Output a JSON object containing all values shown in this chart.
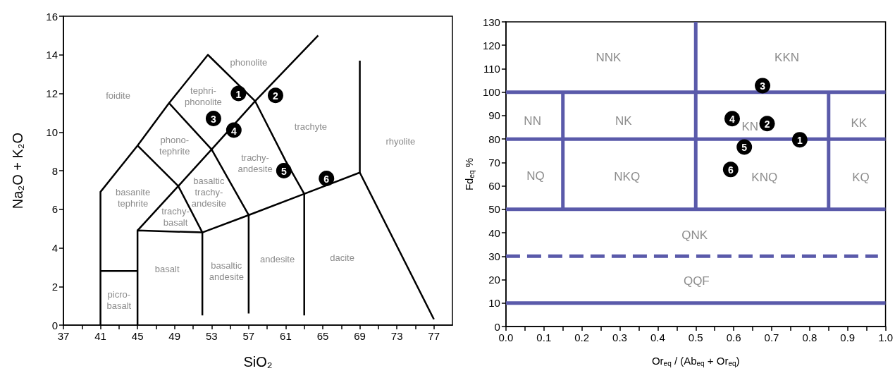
{
  "chart_data": [
    {
      "type": "scatter",
      "xlabel": "SiO₂",
      "ylabel": "Na₂O + K₂O",
      "xlim": [
        37,
        79
      ],
      "xticks": [
        37,
        {
          "value": 39,
          "label": null
        },
        41,
        {
          "value": 43,
          "label": null
        },
        45,
        {
          "value": 47,
          "label": null
        },
        49,
        {
          "value": 51,
          "label": null
        },
        53,
        {
          "value": 55,
          "label": null
        },
        57,
        {
          "value": 59,
          "label": null
        },
        61,
        {
          "value": 63,
          "label": null
        },
        65,
        {
          "value": 67,
          "label": null
        },
        69,
        {
          "value": 71,
          "label": null
        },
        73,
        {
          "value": 75,
          "label": null
        },
        77
      ],
      "ylim": [
        0,
        16
      ],
      "yticks": [
        0,
        2,
        4,
        6,
        8,
        10,
        12,
        14,
        16
      ],
      "series": [
        {
          "type": "line",
          "color": "#000000",
          "x": [
            41,
            41,
            45,
            48.4,
            52.6,
            57.7,
            61,
            63,
            63
          ],
          "values": [
            0,
            6.9,
            9.3,
            11.5,
            14,
            11.6,
            8.5,
            6.8,
            0.5
          ]
        },
        {
          "type": "line",
          "color": "#000000",
          "x": [
            41,
            45
          ],
          "values": [
            2.8,
            2.8
          ]
        },
        {
          "type": "line",
          "color": "#000000",
          "x": [
            45,
            45,
            52,
            57,
            63,
            69,
            77
          ],
          "values": [
            0,
            4.9,
            4.8,
            5.7,
            6.8,
            7.9,
            0.3
          ]
        },
        {
          "type": "line",
          "color": "#000000",
          "x": [
            69,
            69
          ],
          "values": [
            7.9,
            13.7
          ]
        },
        {
          "type": "line",
          "color": "#000000",
          "x": [
            52,
            52
          ],
          "values": [
            4.8,
            0.5
          ]
        },
        {
          "type": "line",
          "color": "#000000",
          "x": [
            57,
            57
          ],
          "values": [
            5.7,
            0.6
          ]
        },
        {
          "type": "line",
          "color": "#000000",
          "x": [
            45,
            49.4,
            53,
            57.7,
            64.5
          ],
          "values": [
            4.9,
            7.2,
            9.1,
            11.6,
            15
          ]
        },
        {
          "type": "line",
          "color": "#000000",
          "x": [
            45,
            49.4,
            52
          ],
          "values": [
            9.3,
            7.2,
            4.8
          ]
        },
        {
          "type": "line",
          "color": "#000000",
          "x": [
            48.4,
            53,
            57
          ],
          "values": [
            11.5,
            9.1,
            5.7
          ]
        },
        {
          "type": "scatter",
          "color": "#000000",
          "marker": "circle",
          "x": [
            55.9,
            59.9,
            53.2,
            55.4,
            60.8,
            65.4
          ],
          "values": [
            12,
            11.9,
            10.7,
            10.1,
            8,
            7.6
          ]
        }
      ],
      "annotations": [
        {
          "text": "1",
          "x": 55.9,
          "y": 12
        },
        {
          "text": "2",
          "x": 59.9,
          "y": 11.9
        },
        {
          "text": "3",
          "x": 53.2,
          "y": 10.7
        },
        {
          "text": "4",
          "x": 55.4,
          "y": 10.1
        },
        {
          "text": "5",
          "x": 60.8,
          "y": 8
        },
        {
          "text": "6",
          "x": 65.4,
          "y": 7.6
        },
        "phonolite",
        "foidite",
        "tephri-\nphonolite",
        "phono-\ntephrite",
        "trachyte",
        "rhyolite",
        "trachy-\nandesite",
        "basanite\ntephrite",
        "basaltic\ntrachy-\nandesite",
        "trachy-\nbasalt",
        "basalt",
        "basaltic\nandesite",
        "andesite",
        "dacite",
        "picro-\nbasalt"
      ]
    },
    {
      "type": "scatter",
      "xlabel": "Or$_{eq}$ / (Ab$_{eq}$ + Or$_{eq}$)",
      "ylabel": "Fd$_{eq}$ %",
      "xlim": [
        0,
        1
      ],
      "xticks": [
        {
          "value": 0,
          "label": "0.0"
        },
        {
          "value": 0.05,
          "label": null
        },
        0.1,
        {
          "value": 0.15,
          "label": null
        },
        0.2,
        {
          "value": 0.25,
          "label": null
        },
        0.3,
        {
          "value": 0.35,
          "label": null
        },
        0.4,
        {
          "value": 0.45,
          "label": null
        },
        0.5,
        {
          "value": 0.55,
          "label": null
        },
        0.6,
        {
          "value": 0.65,
          "label": null
        },
        0.7,
        {
          "value": 0.75,
          "label": null
        },
        0.8,
        {
          "value": 0.85,
          "label": null
        },
        0.9,
        {
          "value": 0.95,
          "label": null
        },
        {
          "value": 1,
          "label": "1.0"
        }
      ],
      "ylim": [
        0,
        130
      ],
      "yticks": [
        0,
        10,
        20,
        30,
        40,
        50,
        60,
        70,
        80,
        90,
        100,
        110,
        120,
        130
      ],
      "series": [
        {
          "type": "line",
          "color": "#5a5aaa",
          "x": [
            0,
            1
          ],
          "values": [
            10,
            10
          ]
        },
        {
          "type": "line",
          "color": "#5a5aaa",
          "x": [
            0,
            0.98
          ],
          "values": [
            30,
            30
          ],
          "line_style": "dashed"
        },
        {
          "type": "line",
          "color": "#5a5aaa",
          "x": [
            0,
            1
          ],
          "values": [
            50,
            50
          ]
        },
        {
          "type": "line",
          "color": "#5a5aaa",
          "x": [
            0,
            1
          ],
          "values": [
            80,
            80
          ]
        },
        {
          "type": "line",
          "color": "#5a5aaa",
          "x": [
            0,
            1
          ],
          "values": [
            100,
            100
          ]
        },
        {
          "type": "line",
          "color": "#5a5aaa",
          "x": [
            0.5,
            0.5
          ],
          "values": [
            50,
            130
          ]
        },
        {
          "type": "line",
          "color": "#5a5aaa",
          "x": [
            0.15,
            0.15
          ],
          "values": [
            50,
            100
          ]
        },
        {
          "type": "line",
          "color": "#5a5aaa",
          "x": [
            0.85,
            0.85
          ],
          "values": [
            50,
            100
          ]
        },
        {
          "type": "scatter",
          "color": "#000000",
          "marker": "circle",
          "x": [
            0.774,
            0.688,
            0.676,
            0.596,
            0.628,
            0.592
          ],
          "values": [
            79.7,
            86.6,
            102.8,
            88.7,
            76.6,
            67
          ]
        }
      ],
      "annotations": [
        {
          "text": "1",
          "x": 0.774,
          "y": 79.7
        },
        {
          "text": "2",
          "x": 0.688,
          "y": 86.6
        },
        {
          "text": "3",
          "x": 0.676,
          "y": 102.8
        },
        {
          "text": "4",
          "x": 0.596,
          "y": 88.7
        },
        {
          "text": "5",
          "x": 0.628,
          "y": 76.6
        },
        {
          "text": "6",
          "x": 0.592,
          "y": 67
        },
        "NNK",
        "KKN",
        "NN",
        "NK",
        "KN",
        "KK",
        "NQ",
        "NKQ",
        "KNQ",
        "KQ",
        "QNK",
        "QQF"
      ]
    }
  ]
}
